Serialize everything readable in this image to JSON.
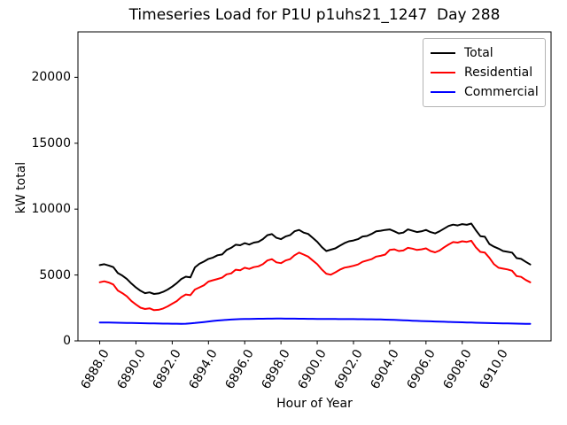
{
  "chart_data": {
    "type": "line",
    "title": "Timeseries Load for P1U p1uhs21_1247  Day 288",
    "xlabel": "Hour of Year",
    "ylabel": "kW total",
    "xlim": [
      6886.8,
      6912.9
    ],
    "ylim": [
      0,
      23450
    ],
    "grid": false,
    "legend_position": "upper right",
    "xticks": {
      "values": [
        6888,
        6890,
        6892,
        6894,
        6896,
        6898,
        6900,
        6902,
        6904,
        6906,
        6908,
        6910
      ],
      "labels": [
        "6888.0",
        "6890.0",
        "6892.0",
        "6894.0",
        "6896.0",
        "6898.0",
        "6900.0",
        "6902.0",
        "6904.0",
        "6906.0",
        "6908.0",
        "6910.0"
      ]
    },
    "yticks": {
      "values": [
        0,
        5000,
        10000,
        15000,
        20000
      ],
      "labels": [
        "0",
        "5000",
        "10000",
        "15000",
        "20000"
      ]
    },
    "x": [
      6888.0,
      6888.25,
      6888.5,
      6888.75,
      6889.0,
      6889.25,
      6889.5,
      6889.75,
      6890.0,
      6890.25,
      6890.5,
      6890.75,
      6891.0,
      6891.25,
      6891.5,
      6891.75,
      6892.0,
      6892.25,
      6892.5,
      6892.75,
      6893.0,
      6893.25,
      6893.5,
      6893.75,
      6894.0,
      6894.25,
      6894.5,
      6894.75,
      6895.0,
      6895.25,
      6895.5,
      6895.75,
      6896.0,
      6896.25,
      6896.5,
      6896.75,
      6897.0,
      6897.25,
      6897.5,
      6897.75,
      6898.0,
      6898.25,
      6898.5,
      6898.75,
      6899.0,
      6899.25,
      6899.5,
      6899.75,
      6900.0,
      6900.25,
      6900.5,
      6900.75,
      6901.0,
      6901.25,
      6901.5,
      6901.75,
      6902.0,
      6902.25,
      6902.5,
      6902.75,
      6903.0,
      6903.25,
      6903.5,
      6903.75,
      6904.0,
      6904.25,
      6904.5,
      6904.75,
      6905.0,
      6905.25,
      6905.5,
      6905.75,
      6906.0,
      6906.25,
      6906.5,
      6906.75,
      6907.0,
      6907.25,
      6907.5,
      6907.75,
      6908.0,
      6908.25,
      6908.5,
      6908.75,
      6909.0,
      6909.25,
      6909.5,
      6909.75,
      6910.0,
      6910.25,
      6910.5,
      6910.75,
      6911.0,
      6911.25,
      6911.5,
      6911.75
    ],
    "series": [
      {
        "name": "Total",
        "color": "#000000",
        "values": [
          5750,
          5820,
          5720,
          5600,
          5150,
          4950,
          4700,
          4350,
          4050,
          3800,
          3620,
          3680,
          3560,
          3600,
          3720,
          3900,
          4120,
          4380,
          4700,
          4870,
          4820,
          5580,
          5850,
          6020,
          6220,
          6320,
          6500,
          6560,
          6900,
          7060,
          7300,
          7260,
          7420,
          7310,
          7460,
          7520,
          7720,
          8020,
          8100,
          7820,
          7720,
          7920,
          8020,
          8320,
          8420,
          8220,
          8120,
          7820,
          7520,
          7120,
          6820,
          6920,
          7020,
          7220,
          7420,
          7560,
          7620,
          7720,
          7920,
          7960,
          8120,
          8320,
          8360,
          8420,
          8460,
          8320,
          8160,
          8220,
          8460,
          8360,
          8260,
          8310,
          8420,
          8260,
          8160,
          8320,
          8520,
          8720,
          8820,
          8760,
          8860,
          8810,
          8900,
          8400,
          7950,
          7900,
          7350,
          7150,
          7000,
          6820,
          6760,
          6700,
          6280,
          6220,
          6000,
          5800
        ]
      },
      {
        "name": "Residential",
        "color": "#ff0000",
        "values": [
          4450,
          4520,
          4430,
          4280,
          3820,
          3620,
          3380,
          3020,
          2760,
          2520,
          2420,
          2470,
          2330,
          2360,
          2460,
          2620,
          2820,
          3020,
          3320,
          3520,
          3470,
          3900,
          4060,
          4220,
          4500,
          4600,
          4700,
          4800,
          5050,
          5120,
          5400,
          5360,
          5550,
          5460,
          5600,
          5660,
          5820,
          6100,
          6200,
          5960,
          5900,
          6100,
          6200,
          6500,
          6700,
          6550,
          6400,
          6100,
          5820,
          5420,
          5100,
          5020,
          5200,
          5400,
          5560,
          5620,
          5700,
          5800,
          6000,
          6100,
          6200,
          6400,
          6460,
          6550,
          6900,
          6950,
          6820,
          6860,
          7060,
          7000,
          6900,
          6950,
          7020,
          6820,
          6720,
          6860,
          7100,
          7320,
          7500,
          7460,
          7560,
          7510,
          7600,
          7100,
          6750,
          6700,
          6300,
          5820,
          5550,
          5480,
          5420,
          5320,
          4920,
          4860,
          4620,
          4450
        ]
      },
      {
        "name": "Commercial",
        "color": "#0000ff",
        "values": [
          1400,
          1395,
          1390,
          1385,
          1380,
          1372,
          1365,
          1358,
          1350,
          1342,
          1335,
          1330,
          1325,
          1318,
          1312,
          1308,
          1305,
          1302,
          1300,
          1305,
          1330,
          1360,
          1395,
          1430,
          1470,
          1510,
          1545,
          1575,
          1600,
          1620,
          1638,
          1650,
          1660,
          1668,
          1674,
          1678,
          1682,
          1685,
          1688,
          1690,
          1690,
          1688,
          1686,
          1684,
          1682,
          1678,
          1675,
          1672,
          1668,
          1665,
          1662,
          1660,
          1658,
          1656,
          1654,
          1652,
          1650,
          1648,
          1645,
          1642,
          1638,
          1632,
          1625,
          1615,
          1605,
          1592,
          1578,
          1565,
          1550,
          1535,
          1520,
          1508,
          1495,
          1482,
          1470,
          1460,
          1450,
          1440,
          1430,
          1420,
          1410,
          1400,
          1390,
          1380,
          1370,
          1360,
          1350,
          1342,
          1335,
          1328,
          1322,
          1316,
          1310,
          1305,
          1300,
          1295
        ]
      }
    ]
  }
}
